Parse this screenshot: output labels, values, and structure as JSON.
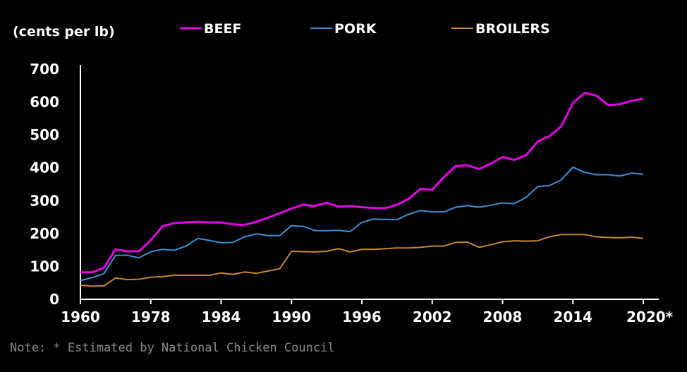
{
  "chart_data": {
    "type": "line",
    "unit_label": "(cents per lb)",
    "note": "Note: * Estimated by National Chicken Council",
    "x_tick_labels": [
      "1960",
      "1978",
      "1984",
      "1990",
      "1996",
      "2002",
      "2008",
      "2014",
      "2020*"
    ],
    "y_ticks": [
      0,
      100,
      200,
      300,
      400,
      500,
      600,
      700
    ],
    "ylim": [
      0,
      700
    ],
    "grid": false,
    "legend_position": "top",
    "series": [
      {
        "name": "BEEF",
        "color": "#e600e6",
        "values": [
          82,
          82,
          96,
          152,
          146,
          146,
          180,
          222,
          232,
          234,
          236,
          234,
          234,
          228,
          226,
          236,
          248,
          262,
          276,
          288,
          284,
          294,
          282,
          284,
          280,
          278,
          277,
          288,
          306,
          336,
          333,
          372,
          405,
          408,
          396,
          413,
          433,
          424,
          438,
          480,
          496,
          526,
          597,
          628,
          620,
          591,
          593,
          604,
          610
        ]
      },
      {
        "name": "PORK",
        "color": "#3a8fd9",
        "values": [
          57,
          66,
          78,
          134,
          134,
          126,
          145,
          152,
          149,
          162,
          185,
          179,
          172,
          173,
          190,
          199,
          194,
          194,
          224,
          222,
          209,
          209,
          210,
          206,
          234,
          244,
          243,
          242,
          259,
          270,
          266,
          266,
          280,
          285,
          280,
          286,
          293,
          291,
          310,
          343,
          346,
          363,
          402,
          386,
          379,
          379,
          375,
          384,
          380
        ]
      },
      {
        "name": "BROILERS",
        "color": "#c8862a",
        "values": [
          43,
          40,
          41,
          65,
          60,
          61,
          67,
          69,
          73,
          73,
          73,
          73,
          80,
          76,
          83,
          79,
          86,
          93,
          146,
          145,
          144,
          146,
          154,
          144,
          152,
          152,
          154,
          156,
          156,
          158,
          162,
          162,
          173,
          174,
          158,
          166,
          175,
          178,
          177,
          178,
          190,
          197,
          197,
          197,
          190,
          188,
          187,
          189,
          185
        ]
      }
    ]
  }
}
